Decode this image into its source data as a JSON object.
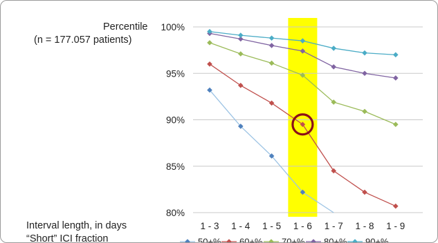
{
  "labels": {
    "percentile_title": "Percentile",
    "patients_note": "(n = 177.057 patients)",
    "interval_label": "Interval length, in days",
    "fraction_label": "“Short” ICI fraction"
  },
  "chart_data": {
    "type": "line",
    "title": "",
    "ylabel": "Percentile",
    "xlabel": "Interval length, in days",
    "categories": [
      "1 - 3",
      "1 - 4",
      "1 - 5",
      "1 - 6",
      "1 - 7",
      "1 - 8",
      "1 - 9"
    ],
    "y_ticks": [
      "100%",
      "95%",
      "90%",
      "85%",
      "80%"
    ],
    "ylim": [
      80,
      100
    ],
    "grid": true,
    "legend_title": "“Short” ICI fraction",
    "legend_position": "bottom",
    "highlight_category": "1 - 6",
    "highlight_color": "#ffff00",
    "circle_marker": {
      "series": "60+%",
      "category": "1 - 6",
      "color": "#8b0f18"
    },
    "series": [
      {
        "name": "50+%",
        "color": "#4f81bd",
        "line_color": "#9cc3e4",
        "values": [
          93.2,
          89.3,
          86.1,
          82.2,
          79.0,
          null,
          null
        ]
      },
      {
        "name": "60+%",
        "color": "#c0504d",
        "line_color": "#c0504d",
        "values": [
          96.0,
          93.7,
          91.8,
          89.5,
          84.5,
          82.2,
          80.7
        ]
      },
      {
        "name": "70+%",
        "color": "#9bbb59",
        "line_color": "#9bbb59",
        "values": [
          98.3,
          97.1,
          96.1,
          94.8,
          91.9,
          90.9,
          89.5
        ]
      },
      {
        "name": "80+%",
        "color": "#8064a2",
        "line_color": "#8064a2",
        "values": [
          99.3,
          98.7,
          98.0,
          97.4,
          95.7,
          95.0,
          94.5
        ]
      },
      {
        "name": "90+%",
        "color": "#4bacc6",
        "line_color": "#4bacc6",
        "values": [
          99.5,
          99.1,
          98.8,
          98.5,
          97.7,
          97.2,
          97.0
        ]
      }
    ]
  }
}
